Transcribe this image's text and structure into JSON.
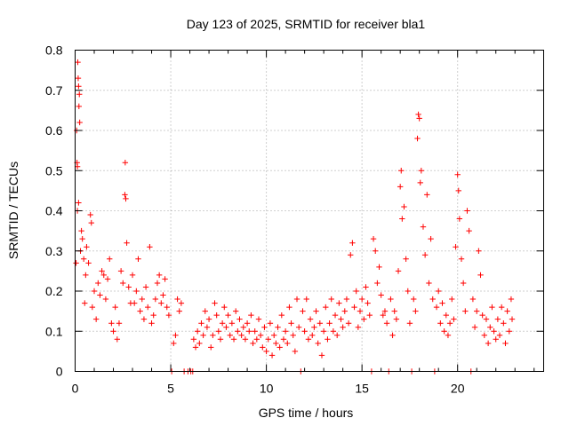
{
  "chart_data": {
    "type": "scatter",
    "title": "Day 123 of 2025, SRMTID for receiver bla1",
    "xlabel": "GPS time / hours",
    "ylabel": "SRMTID / TECUs",
    "xlim": [
      0,
      24.5
    ],
    "ylim": [
      0,
      0.8
    ],
    "xticks": [
      0,
      5,
      10,
      15,
      20
    ],
    "xtick_labels": [
      "0",
      "5",
      "10",
      "15",
      "20"
    ],
    "yticks": [
      0,
      0.1,
      0.2,
      0.3,
      0.4,
      0.5,
      0.6,
      0.7,
      0.8
    ],
    "ytick_labels": [
      "0",
      "0.1",
      "0.2",
      "0.3",
      "0.4",
      "0.5",
      "0.6",
      "0.7",
      "0.8"
    ],
    "grid": true,
    "marker": "plus",
    "color": "#ff0000",
    "series": [
      {
        "name": "SRMTID",
        "points": [
          [
            0.05,
            0.27
          ],
          [
            0.08,
            0.6
          ],
          [
            0.1,
            0.52
          ],
          [
            0.12,
            0.51
          ],
          [
            0.14,
            0.77
          ],
          [
            0.16,
            0.73
          ],
          [
            0.18,
            0.71
          ],
          [
            0.2,
            0.66
          ],
          [
            0.22,
            0.69
          ],
          [
            0.24,
            0.62
          ],
          [
            0.12,
            0.4
          ],
          [
            0.18,
            0.42
          ],
          [
            0.28,
            0.3
          ],
          [
            0.33,
            0.35
          ],
          [
            0.38,
            0.33
          ],
          [
            0.45,
            0.28
          ],
          [
            0.5,
            0.17
          ],
          [
            0.55,
            0.24
          ],
          [
            0.6,
            0.31
          ],
          [
            0.7,
            0.27
          ],
          [
            0.8,
            0.39
          ],
          [
            0.85,
            0.37
          ],
          [
            0.9,
            0.16
          ],
          [
            1.0,
            0.2
          ],
          [
            1.1,
            0.13
          ],
          [
            1.2,
            0.22
          ],
          [
            1.3,
            0.19
          ],
          [
            1.4,
            0.25
          ],
          [
            1.5,
            0.24
          ],
          [
            1.6,
            0.18
          ],
          [
            1.7,
            0.23
          ],
          [
            1.8,
            0.28
          ],
          [
            1.9,
            0.12
          ],
          [
            2.0,
            0.1
          ],
          [
            2.1,
            0.16
          ],
          [
            2.2,
            0.08
          ],
          [
            2.3,
            0.12
          ],
          [
            2.4,
            0.25
          ],
          [
            2.5,
            0.22
          ],
          [
            2.6,
            0.44
          ],
          [
            2.62,
            0.52
          ],
          [
            2.65,
            0.43
          ],
          [
            2.7,
            0.32
          ],
          [
            2.8,
            0.21
          ],
          [
            2.9,
            0.17
          ],
          [
            3.0,
            0.24
          ],
          [
            3.1,
            0.17
          ],
          [
            3.2,
            0.2
          ],
          [
            3.3,
            0.28
          ],
          [
            3.4,
            0.15
          ],
          [
            3.5,
            0.18
          ],
          [
            3.6,
            0.13
          ],
          [
            3.7,
            0.21
          ],
          [
            3.8,
            0.16
          ],
          [
            3.9,
            0.31
          ],
          [
            4.0,
            0.12
          ],
          [
            4.1,
            0.14
          ],
          [
            4.2,
            0.18
          ],
          [
            4.3,
            0.22
          ],
          [
            4.4,
            0.24
          ],
          [
            4.5,
            0.17
          ],
          [
            4.6,
            0.19
          ],
          [
            4.7,
            0.23
          ],
          [
            4.8,
            0.16
          ],
          [
            4.9,
            0.14
          ],
          [
            5.05,
            0.0
          ],
          [
            5.15,
            0.07
          ],
          [
            5.25,
            0.09
          ],
          [
            5.35,
            0.18
          ],
          [
            5.45,
            0.15
          ],
          [
            5.55,
            0.17
          ],
          [
            5.7,
            0.0
          ],
          [
            5.9,
            0.0
          ],
          [
            6.05,
            0.0
          ],
          [
            6.15,
            0.0
          ],
          [
            6.2,
            0.08
          ],
          [
            6.3,
            0.06
          ],
          [
            6.4,
            0.1
          ],
          [
            6.5,
            0.07
          ],
          [
            6.6,
            0.12
          ],
          [
            6.7,
            0.09
          ],
          [
            6.8,
            0.15
          ],
          [
            6.9,
            0.11
          ],
          [
            7.0,
            0.13
          ],
          [
            7.1,
            0.06
          ],
          [
            7.2,
            0.09
          ],
          [
            7.3,
            0.17
          ],
          [
            7.4,
            0.14
          ],
          [
            7.5,
            0.1
          ],
          [
            7.6,
            0.08
          ],
          [
            7.7,
            0.12
          ],
          [
            7.8,
            0.16
          ],
          [
            7.9,
            0.11
          ],
          [
            8.0,
            0.14
          ],
          [
            8.1,
            0.09
          ],
          [
            8.2,
            0.12
          ],
          [
            8.3,
            0.08
          ],
          [
            8.4,
            0.15
          ],
          [
            8.5,
            0.1
          ],
          [
            8.6,
            0.13
          ],
          [
            8.7,
            0.09
          ],
          [
            8.8,
            0.11
          ],
          [
            8.9,
            0.08
          ],
          [
            9.0,
            0.12
          ],
          [
            9.1,
            0.1
          ],
          [
            9.2,
            0.14
          ],
          [
            9.3,
            0.07
          ],
          [
            9.4,
            0.1
          ],
          [
            9.5,
            0.08
          ],
          [
            9.6,
            0.13
          ],
          [
            9.7,
            0.09
          ],
          [
            9.8,
            0.06
          ],
          [
            9.9,
            0.11
          ],
          [
            10.0,
            0.05
          ],
          [
            10.1,
            0.08
          ],
          [
            10.2,
            0.12
          ],
          [
            10.3,
            0.04
          ],
          [
            10.4,
            0.09
          ],
          [
            10.5,
            0.07
          ],
          [
            10.6,
            0.11
          ],
          [
            10.7,
            0.06
          ],
          [
            10.8,
            0.14
          ],
          [
            10.9,
            0.08
          ],
          [
            11.0,
            0.1
          ],
          [
            11.1,
            0.07
          ],
          [
            11.2,
            0.16
          ],
          [
            11.3,
            0.12
          ],
          [
            11.4,
            0.09
          ],
          [
            11.5,
            0.05
          ],
          [
            11.6,
            0.18
          ],
          [
            11.7,
            0.11
          ],
          [
            11.8,
            0.0
          ],
          [
            11.9,
            0.15
          ],
          [
            12.0,
            0.1
          ],
          [
            12.1,
            0.18
          ],
          [
            12.2,
            0.08
          ],
          [
            12.3,
            0.13
          ],
          [
            12.4,
            0.09
          ],
          [
            12.5,
            0.11
          ],
          [
            12.6,
            0.15
          ],
          [
            12.7,
            0.07
          ],
          [
            12.8,
            0.12
          ],
          [
            12.9,
            0.04
          ],
          [
            13.0,
            0.1
          ],
          [
            13.1,
            0.16
          ],
          [
            13.2,
            0.08
          ],
          [
            13.3,
            0.12
          ],
          [
            13.4,
            0.18
          ],
          [
            13.5,
            0.1
          ],
          [
            13.6,
            0.14
          ],
          [
            13.7,
            0.09
          ],
          [
            13.8,
            0.17
          ],
          [
            13.9,
            0.13
          ],
          [
            14.0,
            0.11
          ],
          [
            14.1,
            0.15
          ],
          [
            14.2,
            0.18
          ],
          [
            14.3,
            0.12
          ],
          [
            14.4,
            0.29
          ],
          [
            14.5,
            0.32
          ],
          [
            14.6,
            0.16
          ],
          [
            14.7,
            0.2
          ],
          [
            14.8,
            0.11
          ],
          [
            14.9,
            0.15
          ],
          [
            15.0,
            0.18
          ],
          [
            15.1,
            0.13
          ],
          [
            15.2,
            0.21
          ],
          [
            15.3,
            0.17
          ],
          [
            15.4,
            0.14
          ],
          [
            15.5,
            0.0
          ],
          [
            15.6,
            0.33
          ],
          [
            15.7,
            0.3
          ],
          [
            15.8,
            0.22
          ],
          [
            15.9,
            0.26
          ],
          [
            16.0,
            0.19
          ],
          [
            16.1,
            0.14
          ],
          [
            16.2,
            0.15
          ],
          [
            16.3,
            0.12
          ],
          [
            16.4,
            0.0
          ],
          [
            16.5,
            0.18
          ],
          [
            16.6,
            0.09
          ],
          [
            16.7,
            0.15
          ],
          [
            16.8,
            0.13
          ],
          [
            16.9,
            0.25
          ],
          [
            17.0,
            0.46
          ],
          [
            17.05,
            0.5
          ],
          [
            17.1,
            0.38
          ],
          [
            17.2,
            0.41
          ],
          [
            17.3,
            0.28
          ],
          [
            17.4,
            0.2
          ],
          [
            17.5,
            0.12
          ],
          [
            17.6,
            0.0
          ],
          [
            17.7,
            0.18
          ],
          [
            17.8,
            0.15
          ],
          [
            17.9,
            0.58
          ],
          [
            17.95,
            0.64
          ],
          [
            18.0,
            0.63
          ],
          [
            18.05,
            0.47
          ],
          [
            18.1,
            0.5
          ],
          [
            18.2,
            0.36
          ],
          [
            18.3,
            0.29
          ],
          [
            18.4,
            0.44
          ],
          [
            18.5,
            0.22
          ],
          [
            18.6,
            0.33
          ],
          [
            18.7,
            0.18
          ],
          [
            18.8,
            0.0
          ],
          [
            18.9,
            0.16
          ],
          [
            19.0,
            0.2
          ],
          [
            19.1,
            0.12
          ],
          [
            19.2,
            0.17
          ],
          [
            19.3,
            0.1
          ],
          [
            19.4,
            0.14
          ],
          [
            19.5,
            0.09
          ],
          [
            19.6,
            0.12
          ],
          [
            19.7,
            0.18
          ],
          [
            19.8,
            0.13
          ],
          [
            19.9,
            0.31
          ],
          [
            20.0,
            0.49
          ],
          [
            20.05,
            0.45
          ],
          [
            20.1,
            0.38
          ],
          [
            20.2,
            0.28
          ],
          [
            20.3,
            0.22
          ],
          [
            20.4,
            0.15
          ],
          [
            20.5,
            0.4
          ],
          [
            20.6,
            0.35
          ],
          [
            20.7,
            0.0
          ],
          [
            20.8,
            0.18
          ],
          [
            20.9,
            0.11
          ],
          [
            21.0,
            0.15
          ],
          [
            21.1,
            0.3
          ],
          [
            21.2,
            0.24
          ],
          [
            21.3,
            0.14
          ],
          [
            21.4,
            0.09
          ],
          [
            21.5,
            0.13
          ],
          [
            21.6,
            0.07
          ],
          [
            21.7,
            0.11
          ],
          [
            21.8,
            0.16
          ],
          [
            21.9,
            0.1
          ],
          [
            22.0,
            0.08
          ],
          [
            22.1,
            0.13
          ],
          [
            22.2,
            0.09
          ],
          [
            22.3,
            0.16
          ],
          [
            22.4,
            0.12
          ],
          [
            22.5,
            0.07
          ],
          [
            22.6,
            0.15
          ],
          [
            22.7,
            0.1
          ],
          [
            22.8,
            0.18
          ],
          [
            22.85,
            0.13
          ]
        ]
      }
    ]
  }
}
